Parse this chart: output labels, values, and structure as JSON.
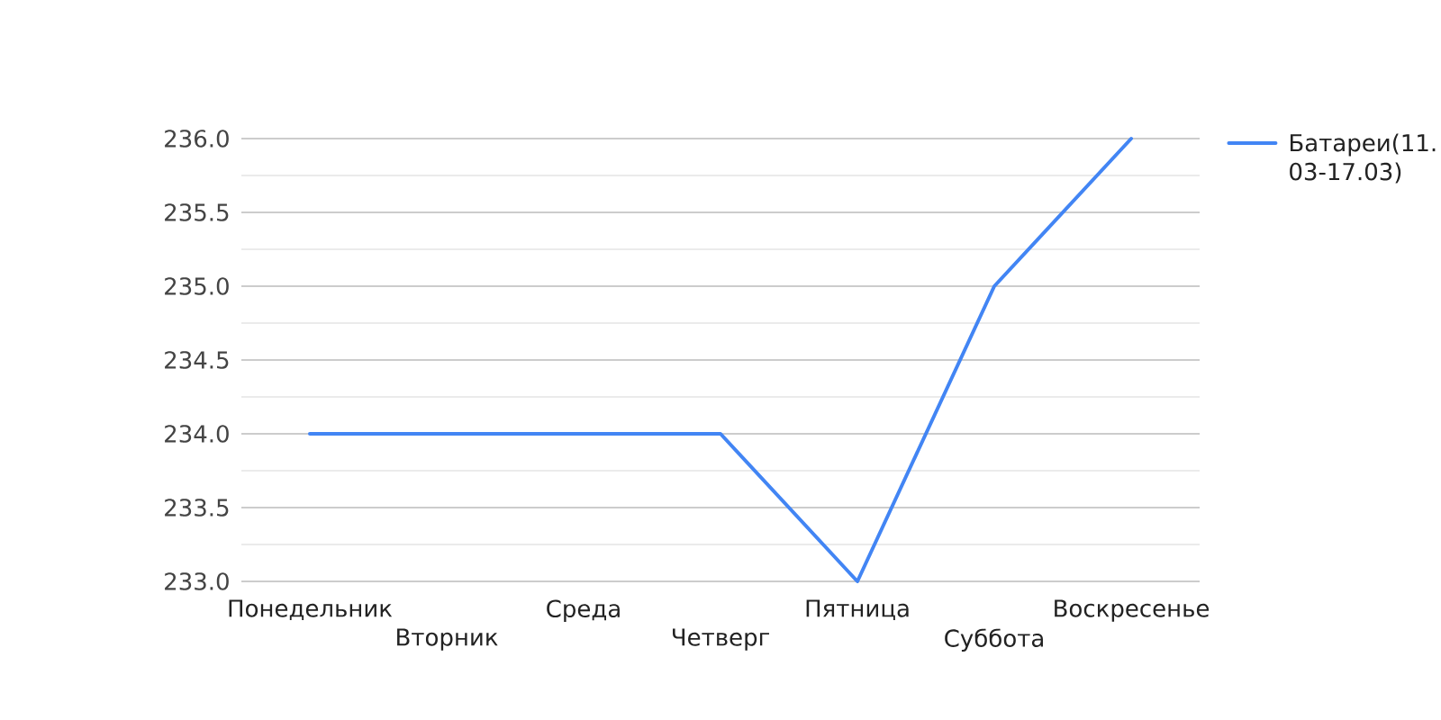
{
  "chart_data": {
    "type": "line",
    "categories": [
      "Понедельник",
      "Вторник",
      "Среда",
      "Четверг",
      "Пятница",
      "Суббота",
      "Воскресенье"
    ],
    "series": [
      {
        "name": "Батареи(11.03-17.03)",
        "color": "#4285f4",
        "values": [
          234,
          234,
          234,
          234,
          233,
          235,
          236
        ]
      }
    ],
    "ylim": [
      233,
      236
    ],
    "yticks": [
      {
        "value": 233,
        "label": "233.0"
      },
      {
        "value": 233.25,
        "label": null
      },
      {
        "value": 233.5,
        "label": "233.5"
      },
      {
        "value": 233.75,
        "label": null
      },
      {
        "value": 234,
        "label": "234.0"
      },
      {
        "value": 234.25,
        "label": null
      },
      {
        "value": 234.5,
        "label": "234.5"
      },
      {
        "value": 234.75,
        "label": null
      },
      {
        "value": 235,
        "label": "235.0"
      },
      {
        "value": 235.25,
        "label": null
      },
      {
        "value": 235.5,
        "label": "235.5"
      },
      {
        "value": 235.75,
        "label": null
      },
      {
        "value": 236,
        "label": "236.0"
      }
    ],
    "grid": "y",
    "legend": "right"
  }
}
